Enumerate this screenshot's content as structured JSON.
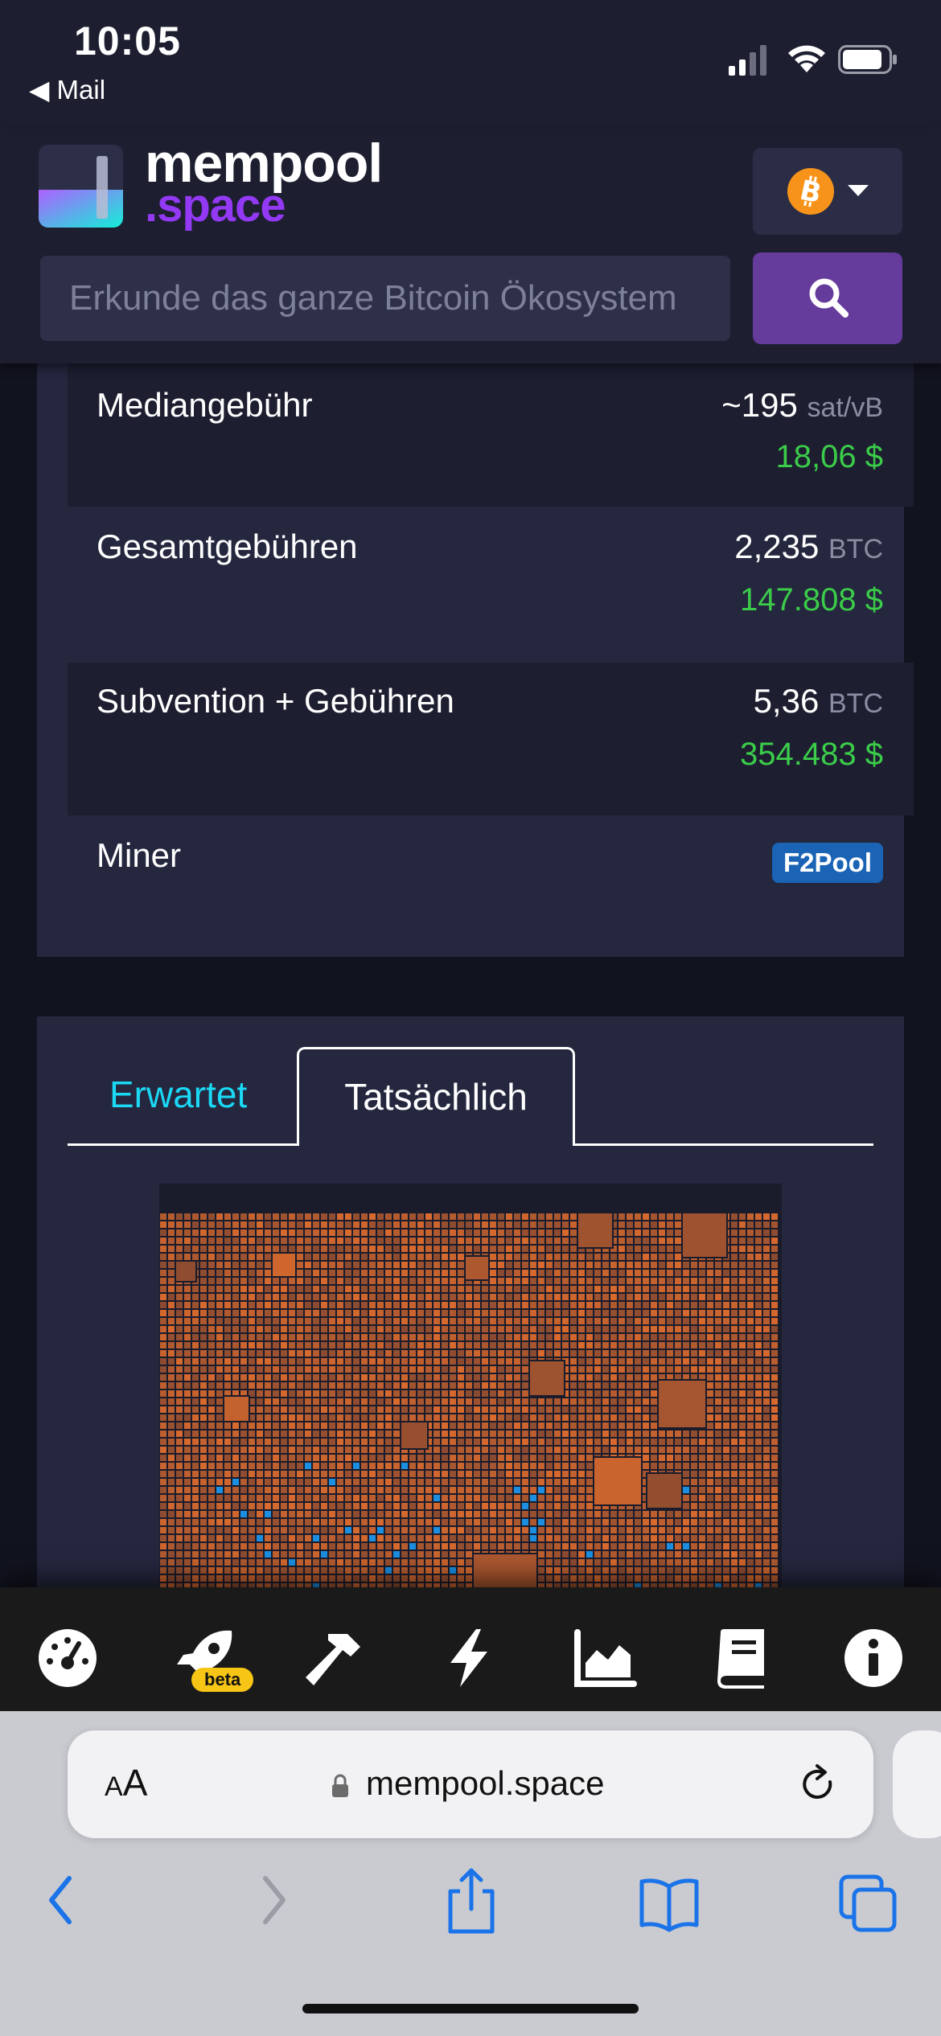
{
  "status_bar": {
    "time": "10:05",
    "back_app": "◀ Mail"
  },
  "header": {
    "logo_line1": "mempool",
    "logo_line2": ".space",
    "network_icon": "bitcoin-icon",
    "search_placeholder": "Erkunde das ganze Bitcoin Ökosystem",
    "search_icon": "search-icon"
  },
  "block_details": {
    "rows": [
      {
        "label": "Mediangebühr",
        "value": "~195",
        "unit": "sat/vB",
        "fiat": "18,06 $"
      },
      {
        "label": "Gesamtgebühren",
        "value": "2,235",
        "unit": "BTC",
        "fiat": "147.808 $"
      },
      {
        "label": "Subvention + Gebühren",
        "value": "5,36",
        "unit": "BTC",
        "fiat": "354.483 $"
      },
      {
        "label": "Miner",
        "badge": "F2Pool"
      }
    ]
  },
  "block_view": {
    "tabs": [
      {
        "label": "Erwartet",
        "active": false
      },
      {
        "label": "Tatsächlich",
        "active": true
      }
    ],
    "colors": {
      "low_fee": "#8a4a30",
      "high_fee": "#d96a2e",
      "highlight": "#1c8fe0"
    }
  },
  "toolbar": {
    "items": [
      "dashboard-icon",
      "rocket-icon",
      "hammer-icon",
      "lightning-icon",
      "graph-icon",
      "docs-icon",
      "info-icon"
    ],
    "beta_label": "beta"
  },
  "safari": {
    "text_size_label": "AA",
    "url": "mempool.space",
    "nav_icons": [
      "back-icon",
      "forward-icon",
      "share-icon",
      "bookmarks-icon",
      "tabs-icon"
    ]
  },
  "colors": {
    "accent_purple": "#9339f4",
    "fiat_green": "#3bcc49",
    "tab_cyan": "#1bd8f4",
    "badge_blue": "#1a63b5",
    "beta_yellow": "#f7c515"
  }
}
